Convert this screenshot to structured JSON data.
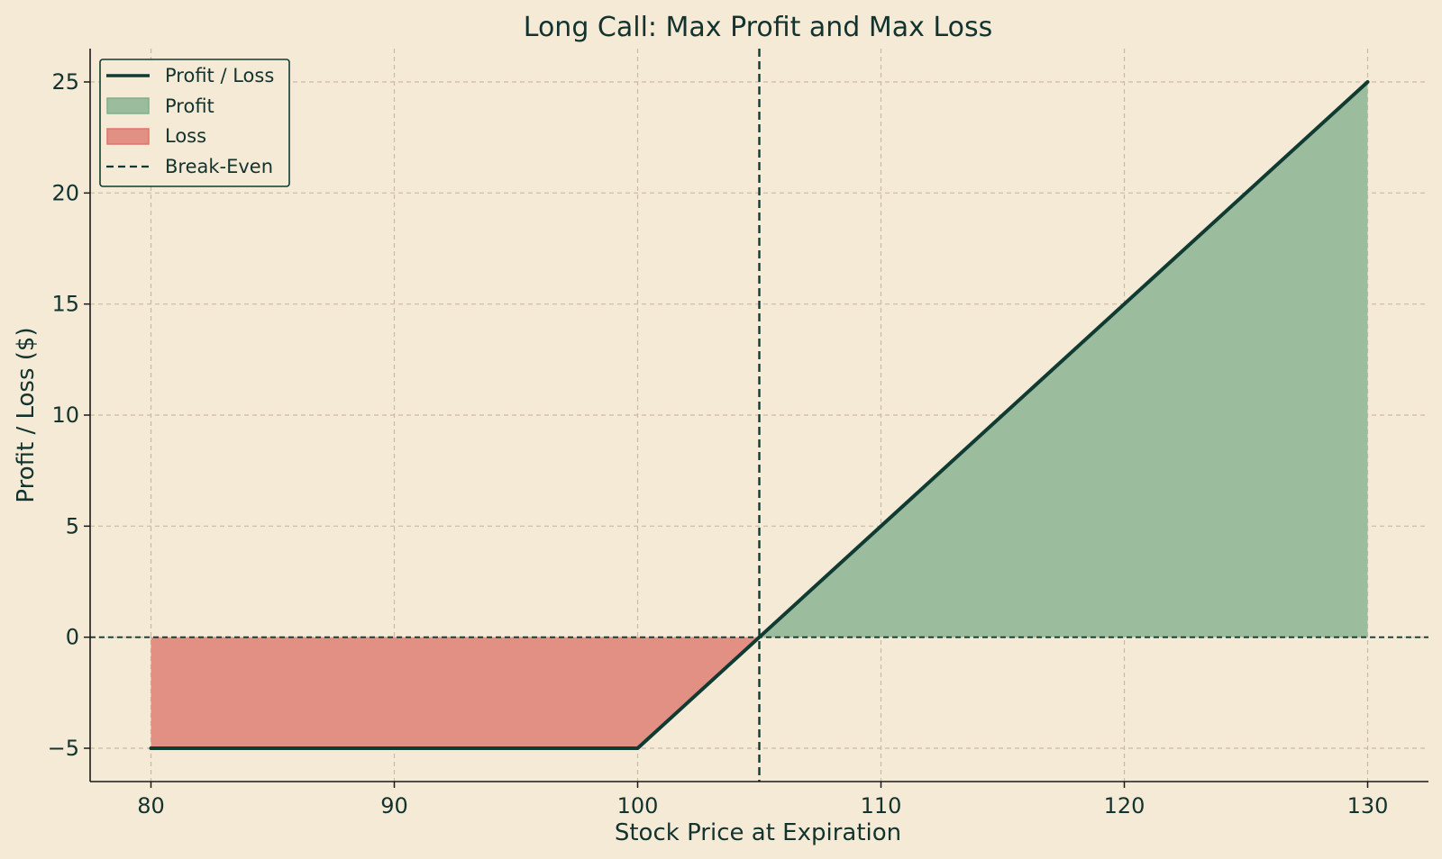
{
  "chart_data": {
    "type": "line",
    "title": "Long Call: Max Profit and Max Loss",
    "xlabel": "Stock Price at Expiration",
    "ylabel": "Profit / Loss ($)",
    "xlim": [
      77.5,
      132.5
    ],
    "ylim": [
      -6.5,
      26.5
    ],
    "xticks": [
      80,
      90,
      100,
      110,
      120,
      130
    ],
    "yticks": [
      -5,
      0,
      5,
      10,
      15,
      20,
      25
    ],
    "ytick_labels": [
      "−5",
      "0",
      "5",
      "10",
      "15",
      "20",
      "25"
    ],
    "grid": true,
    "legend_position": "top-left",
    "break_even": 105,
    "zero_line": 0,
    "series": [
      {
        "name": "Profit / Loss",
        "x": [
          80,
          100,
          105,
          130
        ],
        "y": [
          -5,
          -5,
          0,
          25
        ]
      }
    ],
    "fills": [
      {
        "name": "Profit",
        "where": "above-zero"
      },
      {
        "name": "Loss",
        "where": "below-zero"
      }
    ],
    "legend": [
      "Profit / Loss",
      "Profit",
      "Loss",
      "Break-Even"
    ],
    "colors": {
      "background": "#f5ead6",
      "line": "#0f3b33",
      "profit_fill": "#9bbd9d",
      "profit_edge": "#7fb08a",
      "loss_fill": "#e29084",
      "loss_edge": "#df7568",
      "grid": "#c9bba6",
      "text": "#12332e"
    }
  }
}
